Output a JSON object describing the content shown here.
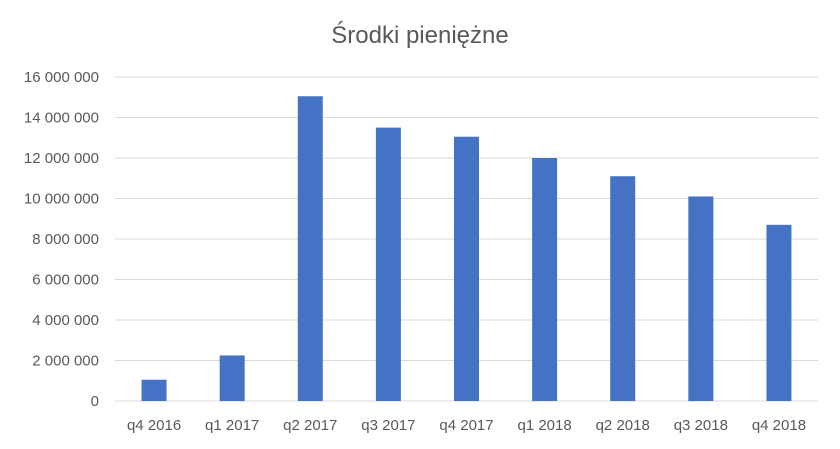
{
  "chart_data": {
    "type": "bar",
    "title": "Środki pieniężne",
    "categories": [
      "q4 2016",
      "q1 2017",
      "q2 2017",
      "q3 2017",
      "q4 2017",
      "q1 2018",
      "q2 2018",
      "q3 2018",
      "q4 2018"
    ],
    "values": [
      1050000,
      2250000,
      15050000,
      13500000,
      13050000,
      12000000,
      11100000,
      10100000,
      8700000
    ],
    "ylim": [
      0,
      16000000
    ],
    "y_ticks": [
      0,
      2000000,
      4000000,
      6000000,
      8000000,
      10000000,
      12000000,
      14000000,
      16000000
    ],
    "y_tick_labels": [
      "0",
      "2 000 000",
      "4 000 000",
      "6 000 000",
      "8 000 000",
      "10 000 000",
      "12 000 000",
      "14 000 000",
      "16 000 000"
    ],
    "xlabel": "",
    "ylabel": "",
    "grid": true,
    "legend": "none",
    "bar_color": "#4472C4"
  }
}
